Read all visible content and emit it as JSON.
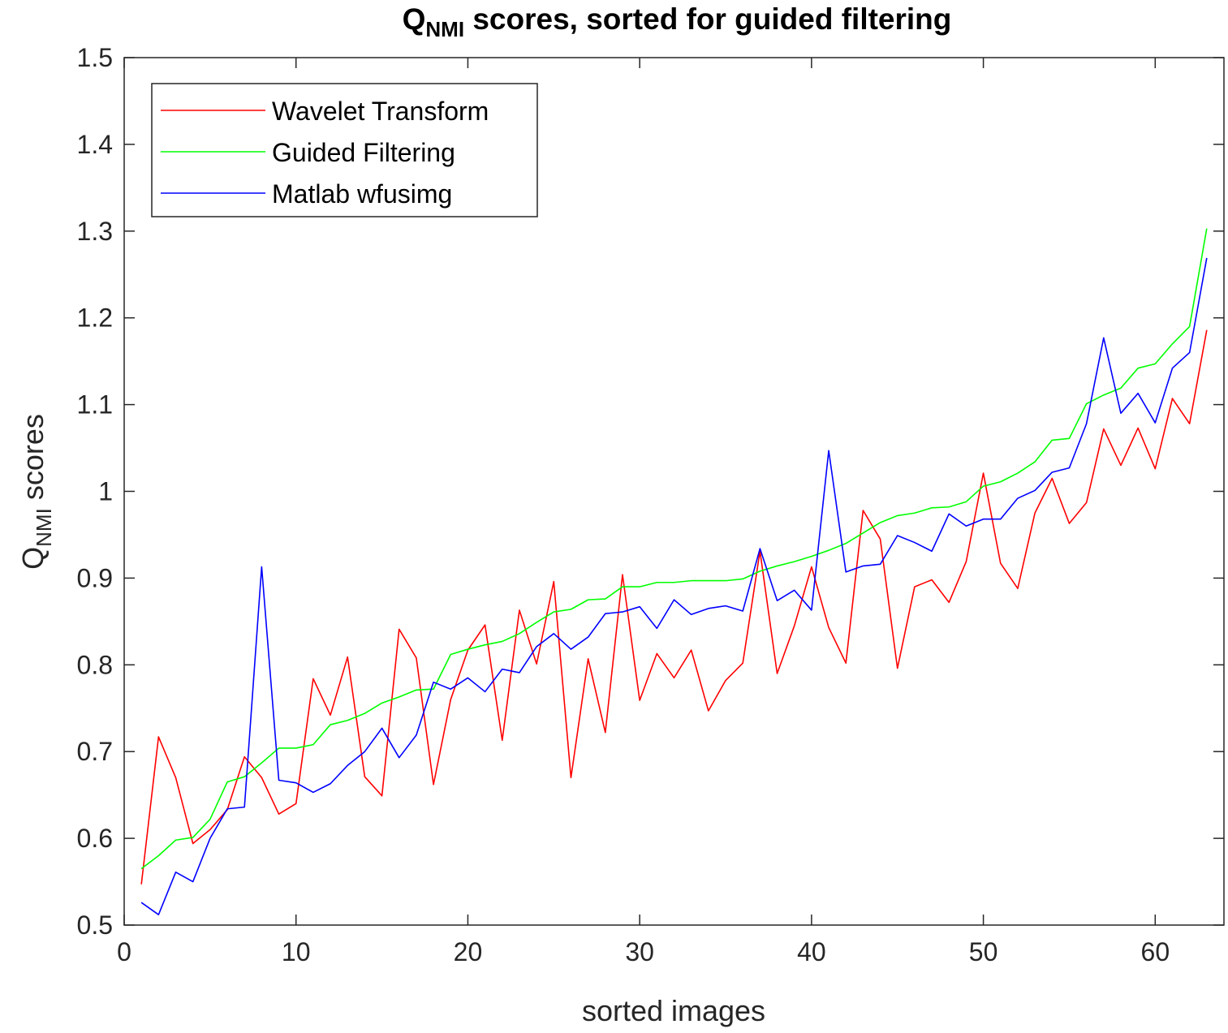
{
  "chart_data": {
    "type": "line",
    "title": {
      "main": "Q",
      "subscript": "NMI",
      "rest": " scores, sorted for guided filtering"
    },
    "xlabel": "sorted images",
    "ylabel": {
      "main": "Q",
      "subscript": "NMI",
      "rest": " scores"
    },
    "xlim": [
      0,
      64
    ],
    "ylim": [
      0.5,
      1.5
    ],
    "xticks": [
      0,
      10,
      20,
      30,
      40,
      50,
      60
    ],
    "yticks": [
      0.5,
      0.6,
      0.7,
      0.8,
      0.9,
      1,
      1.1,
      1.2,
      1.3,
      1.4,
      1.5
    ],
    "ytick_labels": [
      "0.5",
      "0.6",
      "0.7",
      "0.8",
      "0.9",
      "1",
      "1.1",
      "1.2",
      "1.3",
      "1.4",
      "1.5"
    ],
    "grid": false,
    "legend_position": "top-left",
    "x": [
      1,
      2,
      3,
      4,
      5,
      6,
      7,
      8,
      9,
      10,
      11,
      12,
      13,
      14,
      15,
      16,
      17,
      18,
      19,
      20,
      21,
      22,
      23,
      24,
      25,
      26,
      27,
      28,
      29,
      30,
      31,
      32,
      33,
      34,
      35,
      36,
      37,
      38,
      39,
      40,
      41,
      42,
      43,
      44,
      45,
      46,
      47,
      48,
      49,
      50,
      51,
      52,
      53,
      54,
      55,
      56,
      57,
      58,
      59,
      60,
      61,
      62,
      63
    ],
    "series": [
      {
        "name": "Wavelet Transform",
        "color": "#ff0000",
        "values": [
          0.547,
          0.717,
          0.67,
          0.594,
          0.61,
          0.633,
          0.694,
          0.67,
          0.628,
          0.64,
          0.784,
          0.742,
          0.809,
          0.671,
          0.649,
          0.841,
          0.808,
          0.662,
          0.76,
          0.817,
          0.846,
          0.713,
          0.863,
          0.801,
          0.896,
          0.67,
          0.807,
          0.722,
          0.904,
          0.759,
          0.813,
          0.785,
          0.817,
          0.747,
          0.782,
          0.802,
          0.931,
          0.79,
          0.845,
          0.913,
          0.843,
          0.802,
          0.978,
          0.945,
          0.796,
          0.89,
          0.898,
          0.872,
          0.919,
          1.021,
          0.917,
          0.888,
          0.975,
          1.015,
          0.963,
          0.987,
          1.072,
          1.03,
          1.073,
          1.026,
          1.107,
          1.078,
          1.186
        ]
      },
      {
        "name": "Guided Filtering",
        "color": "#00ff00",
        "values": [
          0.565,
          0.58,
          0.598,
          0.601,
          0.622,
          0.665,
          0.671,
          0.687,
          0.704,
          0.704,
          0.708,
          0.731,
          0.736,
          0.744,
          0.756,
          0.763,
          0.771,
          0.772,
          0.812,
          0.818,
          0.823,
          0.827,
          0.836,
          0.849,
          0.861,
          0.864,
          0.875,
          0.876,
          0.89,
          0.89,
          0.895,
          0.895,
          0.897,
          0.897,
          0.897,
          0.899,
          0.908,
          0.914,
          0.919,
          0.925,
          0.932,
          0.94,
          0.952,
          0.964,
          0.972,
          0.975,
          0.981,
          0.982,
          0.988,
          1.006,
          1.011,
          1.021,
          1.034,
          1.059,
          1.061,
          1.101,
          1.111,
          1.119,
          1.142,
          1.147,
          1.17,
          1.19,
          1.303
        ]
      },
      {
        "name": "Matlab wfusimg",
        "color": "#0000ff",
        "values": [
          0.526,
          0.512,
          0.561,
          0.55,
          0.6,
          0.634,
          0.636,
          0.913,
          0.667,
          0.664,
          0.653,
          0.663,
          0.684,
          0.7,
          0.727,
          0.693,
          0.719,
          0.78,
          0.772,
          0.785,
          0.769,
          0.795,
          0.791,
          0.821,
          0.836,
          0.818,
          0.832,
          0.859,
          0.861,
          0.867,
          0.842,
          0.875,
          0.858,
          0.865,
          0.868,
          0.862,
          0.934,
          0.874,
          0.886,
          0.863,
          1.047,
          0.907,
          0.914,
          0.916,
          0.949,
          0.941,
          0.931,
          0.974,
          0.96,
          0.968,
          0.968,
          0.992,
          1.001,
          1.022,
          1.027,
          1.078,
          1.177,
          1.09,
          1.113,
          1.079,
          1.142,
          1.16,
          1.269
        ]
      }
    ]
  }
}
